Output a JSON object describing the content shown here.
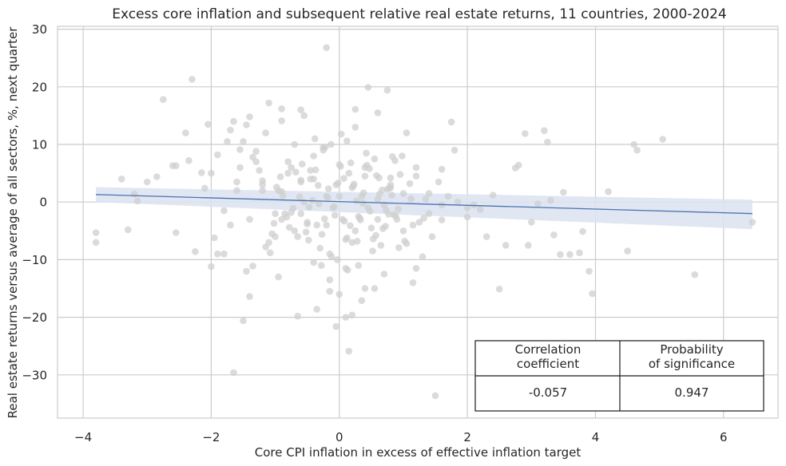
{
  "chart_data": {
    "type": "scatter",
    "title": "Excess core inflation and subsequent relative real estate returns, 11 countries, 2000-2024",
    "xlabel": "Core CPI inflation in excess of effective inflation target",
    "ylabel": "Real estate returns versus average of all sectors, %, next quarter",
    "xlim": [
      -4.4,
      6.85
    ],
    "ylim": [
      -37.5,
      30.5
    ],
    "x_ticks": [
      -4,
      -2,
      0,
      2,
      4,
      6
    ],
    "x_tick_labels": [
      "−4",
      "−2",
      "0",
      "2",
      "4",
      "6"
    ],
    "y_ticks": [
      -30,
      -20,
      -10,
      0,
      10,
      20,
      30
    ],
    "y_tick_labels": [
      "−30",
      "−20",
      "−10",
      "0",
      "10",
      "20",
      "30"
    ],
    "grid": true,
    "point_color": "#cfcfcf",
    "line_color": "#4c72b0",
    "band_color": "#dbe3f1",
    "regression": {
      "x": [
        -3.8,
        6.45
      ],
      "y": [
        1.3,
        -2.0
      ],
      "band_lower": [
        0.0,
        -4.7
      ],
      "band_upper": [
        2.6,
        0.4
      ]
    },
    "points": {
      "x": [
        -3.8,
        -3.8,
        -3.4,
        -3.3,
        -3.2,
        -3.15,
        -2.85,
        -2.75,
        -2.6,
        -2.55,
        -2.55,
        -2.3,
        -2.25,
        -2.15,
        -2.1,
        -2.05,
        -2.0,
        -1.95,
        -1.9,
        -1.8,
        -1.75,
        -1.65,
        -1.5,
        -1.45,
        -1.4,
        -1.4,
        -1.35,
        -1.1,
        -0.9,
        -0.9,
        -0.65,
        -0.55,
        -0.35,
        -0.2,
        -0.15,
        -0.05,
        0.1,
        0.15,
        0.2,
        0.25,
        0.35,
        0.4,
        0.45,
        0.75,
        1.05,
        1.2,
        1.45,
        1.5,
        1.6,
        1.75,
        1.85,
        2.0,
        2.1,
        2.2,
        2.3,
        2.4,
        2.5,
        2.6,
        2.75,
        2.8,
        2.9,
        2.95,
        3.0,
        3.1,
        3.2,
        3.25,
        3.3,
        3.35,
        3.45,
        3.6,
        3.75,
        3.9,
        3.95,
        4.5,
        4.6,
        4.65,
        5.05,
        5.55,
        6.45,
        -2.35,
        -2.4,
        -3.0,
        -1.7,
        -1.55,
        -0.15,
        0.12,
        1.6,
        3.5,
        3.8,
        4.2,
        -0.45,
        0.8,
        -0.9,
        0.3,
        -1.2,
        -1.0,
        -0.8,
        -0.7,
        -0.6,
        -0.5,
        -0.4,
        -0.3,
        -0.2,
        -0.1,
        0.0,
        0.1,
        0.2,
        0.3,
        0.4,
        0.5,
        0.6,
        0.7,
        0.8,
        0.9,
        1.0,
        -1.3,
        -1.1,
        -0.95,
        -0.85,
        -0.75,
        -0.65,
        -0.55,
        -0.45,
        -0.35,
        -0.25,
        -0.15,
        -0.05,
        0.05,
        0.15,
        0.25,
        0.35,
        0.45,
        0.55,
        0.65,
        0.75,
        0.85,
        0.95,
        1.1,
        1.3,
        -1.5,
        -1.25,
        -1.05,
        -0.9,
        -0.75,
        -0.6,
        -0.5,
        -0.38,
        -0.28,
        -0.18,
        -0.08,
        0.02,
        0.12,
        0.22,
        0.32,
        0.42,
        0.52,
        0.62,
        0.72,
        0.82,
        0.92,
        1.02,
        1.2,
        1.4,
        -1.6,
        -1.35,
        -1.15,
        -0.98,
        -0.82,
        -0.68,
        -0.52,
        -0.42,
        -0.32,
        -0.22,
        -0.12,
        -0.02,
        0.08,
        0.18,
        0.28,
        0.38,
        0.48,
        0.58,
        0.68,
        0.78,
        0.88,
        0.98,
        1.15,
        1.35,
        -1.7,
        -1.45,
        -1.2,
        -1.02,
        -0.88,
        -0.72,
        -0.58,
        -0.48,
        -0.33,
        -0.23,
        -0.13,
        -0.03,
        0.07,
        0.17,
        0.27,
        0.37,
        0.47,
        0.57,
        0.67,
        0.77,
        0.87,
        1.05,
        1.25,
        1.55,
        -1.9,
        -1.55,
        -1.3,
        -1.08,
        -0.92,
        -0.78,
        -0.62,
        -0.47,
        -0.37,
        -0.27,
        -0.17,
        -0.07,
        0.03,
        0.13,
        0.23,
        0.33,
        0.43,
        0.53,
        0.63,
        0.73,
        0.83,
        0.93,
        1.12,
        1.32,
        1.7,
        -2.0,
        -1.8,
        -1.6,
        -1.4,
        -1.2,
        -1.0,
        -0.8,
        -0.6,
        -0.4,
        -0.2,
        0.0,
        0.2,
        0.4,
        0.6,
        0.8,
        1.0,
        1.2,
        1.4,
        1.6,
        1.8,
        2.0,
        -1.65,
        -1.15,
        -0.7,
        -0.25,
        0.25,
        0.7,
        1.15,
        -0.95,
        -0.4,
        0.1,
        0.55,
        -0.6,
        0.0,
        0.6
      ],
      "y": [
        -5.3,
        -7.0,
        4.0,
        -4.8,
        1.4,
        0.2,
        4.4,
        17.8,
        6.3,
        6.3,
        -5.3,
        21.3,
        -8.6,
        5.1,
        2.4,
        13.5,
        -11.2,
        -6.2,
        8.2,
        -9.0,
        10.5,
        -29.6,
        -20.6,
        13.4,
        -16.4,
        14.8,
        -11.1,
        17.2,
        16.2,
        14.1,
        -19.8,
        15.0,
        -18.6,
        26.8,
        -13.5,
        -21.6,
        -20.0,
        -25.9,
        -19.6,
        16.1,
        -17.1,
        -15.0,
        19.9,
        19.4,
        12.0,
        -11.5,
        -6.0,
        -33.6,
        -3.1,
        13.9,
        0.0,
        -2.6,
        -0.5,
        -1.3,
        -6.0,
        1.2,
        -15.1,
        -7.5,
        5.9,
        6.4,
        11.9,
        -7.5,
        -3.5,
        -0.3,
        12.4,
        10.4,
        0.3,
        -5.7,
        -9.1,
        -9.1,
        -8.8,
        -12.0,
        -15.9,
        -8.5,
        10.0,
        9.0,
        10.9,
        -12.6,
        -3.5,
        7.2,
        12.0,
        3.5,
        -4.0,
        9.1,
        -15.5,
        10.6,
        5.7,
        1.7,
        -5.1,
        1.8,
        5.5,
        4.2,
        -3.0,
        -11.0,
        2.0,
        -2.0,
        5.0,
        -5.0,
        3.5,
        -3.5,
        8.0,
        -8.0,
        1.0,
        -1.0,
        6.5,
        -6.5,
        2.5,
        -2.5,
        4.5,
        -4.5,
        0.5,
        -0.5,
        3.0,
        -3.0,
        1.5,
        7.0,
        -7.0,
        2.0,
        -2.0,
        6.0,
        -6.0,
        0.0,
        4.0,
        -4.0,
        9.0,
        -9.0,
        3.0,
        -3.0,
        5.0,
        -5.0,
        1.0,
        -1.0,
        7.5,
        -7.5,
        2.2,
        -2.2,
        4.8,
        3.2,
        -9.5,
        10.5,
        5.5,
        -5.5,
        1.8,
        -1.8,
        3.8,
        -3.8,
        11.0,
        -11.0,
        0.8,
        -0.8,
        6.2,
        -6.2,
        2.8,
        -2.8,
        8.5,
        -8.5,
        4.2,
        -4.2,
        1.2,
        -1.2,
        -6.8,
        6.0,
        -2.0,
        3.5,
        7.8,
        -7.8,
        2.6,
        -2.6,
        5.2,
        -5.2,
        0.3,
        -0.3,
        9.5,
        -9.5,
        3.3,
        -3.3,
        6.8,
        -6.8,
        1.6,
        -1.6,
        4.6,
        -4.6,
        2.4,
        -2.4,
        8.0,
        -4.0,
        0.5,
        12.5,
        -12.0,
        3.7,
        -3.7,
        1.1,
        -1.1,
        6.6,
        -6.6,
        2.9,
        -2.9,
        10.0,
        -10.0,
        4.1,
        -4.1,
        0.2,
        -0.2,
        5.8,
        -5.8,
        2.1,
        -2.1,
        7.2,
        -7.2,
        -3.5,
        3.5,
        -9.0,
        6.0,
        8.8,
        -8.8,
        4.4,
        -4.4,
        0.9,
        -0.9,
        5.6,
        -5.6,
        2.3,
        -2.3,
        11.8,
        -11.8,
        3.1,
        -3.1,
        6.4,
        -6.4,
        1.4,
        -1.4,
        7.9,
        -7.9,
        0.6,
        -2.8,
        1.0,
        5.0,
        -1.5,
        2.0,
        -3.0,
        3.0,
        -6.0,
        7.0,
        -2.0,
        4.0,
        -4.0,
        1.0,
        -7.0,
        6.0,
        -3.0,
        2.5,
        -5.0,
        4.5,
        1.5,
        -0.5,
        9.0,
        -1.0,
        14.0,
        12.0,
        10.0,
        9.5,
        13.0,
        -12.5,
        -14.0,
        -13.0,
        -10.5,
        -11.5,
        -15.0,
        16.0,
        -16.0,
        15.5
      ]
    },
    "table": {
      "headers": [
        "Correlation\ncoefficient",
        "Probability\nof significance"
      ],
      "values": [
        "-0.057",
        "0.947"
      ]
    }
  }
}
